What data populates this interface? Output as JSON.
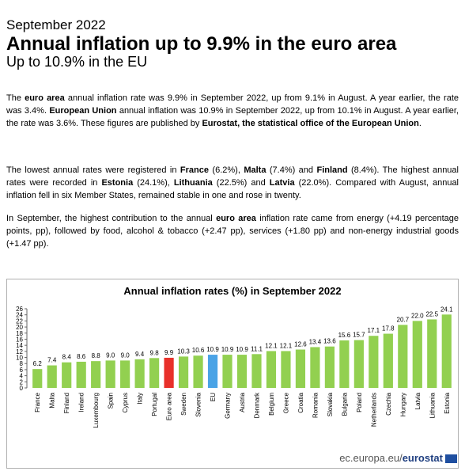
{
  "header": {
    "date": "September 2022",
    "title": "Annual inflation up to 9.9% in the euro area",
    "subtitle": "Up to 10.9% in the EU"
  },
  "paragraphs": [
    [
      {
        "text": "The ",
        "bold": false
      },
      {
        "text": "euro area",
        "bold": true
      },
      {
        "text": " annual inflation rate was 9.9% in September 2022, up from 9.1% in August. A year earlier, the rate was 3.4%. ",
        "bold": false
      },
      {
        "text": "European Union",
        "bold": true
      },
      {
        "text": " annual inflation was 10.9% in September 2022, up from 10.1% in August. A year earlier, the rate was 3.6%. These figures are published by ",
        "bold": false
      },
      {
        "text": "Eurostat, the statistical office of the European Union",
        "bold": true
      },
      {
        "text": ".",
        "bold": false
      }
    ],
    [
      {
        "text": "The lowest annual rates were registered in ",
        "bold": false
      },
      {
        "text": "France",
        "bold": true
      },
      {
        "text": " (6.2%), ",
        "bold": false
      },
      {
        "text": "Malta",
        "bold": true
      },
      {
        "text": " (7.4%) and ",
        "bold": false
      },
      {
        "text": "Finland",
        "bold": true
      },
      {
        "text": " (8.4%). The highest annual rates were recorded in ",
        "bold": false
      },
      {
        "text": "Estonia",
        "bold": true
      },
      {
        "text": " (24.1%), ",
        "bold": false
      },
      {
        "text": "Lithuania",
        "bold": true
      },
      {
        "text": " (22.5%) and ",
        "bold": false
      },
      {
        "text": "Latvia",
        "bold": true
      },
      {
        "text": " (22.0%). Compared with August, annual inflation fell in six Member States, remained stable in one and rose in twenty.",
        "bold": false
      }
    ],
    [
      {
        "text": "In September, the highest contribution to the annual ",
        "bold": false
      },
      {
        "text": "euro area",
        "bold": true
      },
      {
        "text": " inflation rate came from energy (+4.19 percentage points, pp), followed by food, alcohol & tobacco (+2.47 pp), services (+1.80 pp) and non-energy industrial goods (+1.47 pp).",
        "bold": false
      }
    ]
  ],
  "chart_data": {
    "type": "bar",
    "title": "Annual inflation rates (%) in September 2022",
    "categories": [
      "France",
      "Malta",
      "Finland",
      "Ireland",
      "Luxembourg",
      "Spain",
      "Cyprus",
      "Italy",
      "Portugal",
      "Euro area",
      "Sweden",
      "Slovenia",
      "EU",
      "Germany",
      "Austria",
      "Denmark",
      "Belgium",
      "Greece",
      "Croatia",
      "Romania",
      "Slovakia",
      "Bulgaria",
      "Poland",
      "Netherlands",
      "Czechia",
      "Hungary",
      "Latvia",
      "Lithuania",
      "Estonia"
    ],
    "values": [
      6.2,
      7.4,
      8.4,
      8.6,
      8.8,
      9.0,
      9.0,
      9.4,
      9.8,
      9.9,
      10.3,
      10.6,
      10.9,
      10.9,
      10.9,
      11.1,
      12.1,
      12.1,
      12.6,
      13.4,
      13.6,
      15.6,
      15.7,
      17.1,
      17.8,
      20.7,
      22.0,
      22.5,
      24.1
    ],
    "value_labels": [
      "6.2",
      "7.4",
      "8.4",
      "8.6",
      "8.8",
      "9.0",
      "9.0",
      "9.4",
      "9.8",
      "9.9",
      "10.3",
      "10.6",
      "10.9",
      "10.9",
      "10.9",
      "11.1",
      "12.1",
      "12.1",
      "12.6",
      "13.4",
      "13.6",
      "15.6",
      "15.7",
      "17.1",
      "17.8",
      "20.7",
      "22.0",
      "22.5",
      "24.1"
    ],
    "colors": [
      "#92d050",
      "#92d050",
      "#92d050",
      "#92d050",
      "#92d050",
      "#92d050",
      "#92d050",
      "#92d050",
      "#92d050",
      "#e8302a",
      "#92d050",
      "#92d050",
      "#4aa3e6",
      "#92d050",
      "#92d050",
      "#92d050",
      "#92d050",
      "#92d050",
      "#92d050",
      "#92d050",
      "#92d050",
      "#92d050",
      "#92d050",
      "#92d050",
      "#92d050",
      "#92d050",
      "#92d050",
      "#92d050",
      "#92d050"
    ],
    "ylim": [
      0,
      26
    ],
    "yticks": [
      0,
      2,
      4,
      6,
      8,
      10,
      12,
      14,
      16,
      18,
      20,
      22,
      24,
      26
    ],
    "source": [
      "ec.europa.eu/",
      "eurostat"
    ]
  }
}
